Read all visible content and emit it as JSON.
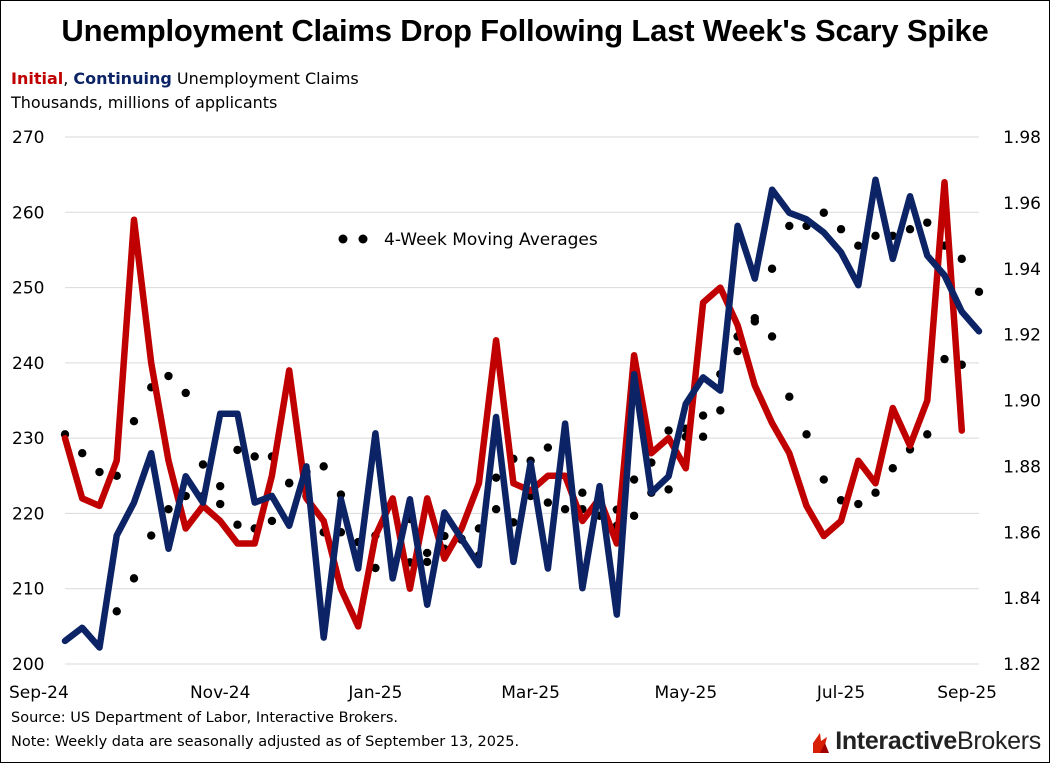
{
  "title": "Unemployment  Claims Drop Following Last Week's Scary Spike",
  "subtitle": {
    "initial": "Initial",
    "separator": ", ",
    "continuing": "Continuing",
    "rest": " Unemployment  Claims"
  },
  "units_label": "Thousands, millions of applicants",
  "source": "Source: US Department of Labor, Interactive Brokers.",
  "note": "Note: Weekly data are seasonally adjusted as of September 13, 2025.",
  "logo": {
    "text_primary": "Interactive",
    "text_secondary": "Brokers"
  },
  "colors": {
    "initial": "#c00000",
    "continuing": "#0c2466",
    "moving_average": "#000000",
    "grid": "#d9d9d9"
  },
  "chart_data": {
    "type": "line",
    "x_tick_labels": [
      "Sep-24",
      "Nov-24",
      "Jan-25",
      "Mar-25",
      "May-25",
      "Jul-25",
      "Sep-25"
    ],
    "x_tick_weeks": [
      0,
      9,
      18,
      27,
      36,
      45,
      54
    ],
    "left_axis": {
      "ylim": [
        200,
        270
      ],
      "ticks": [
        "200",
        "210",
        "220",
        "230",
        "240",
        "250",
        "260",
        "270"
      ]
    },
    "right_axis": {
      "ylim": [
        1.82,
        1.98
      ],
      "ticks": [
        "1.82",
        "1.84",
        "1.86",
        "1.88",
        "1.90",
        "1.92",
        "1.94",
        "1.96",
        "1.98"
      ]
    },
    "grid": "horizontal",
    "legend": {
      "label": "4-Week Moving Averages",
      "placement": "top-left"
    },
    "series": [
      {
        "name": "Initial",
        "axis": "left",
        "values": [
          230,
          222,
          221,
          227,
          259,
          240,
          227,
          218,
          221,
          219,
          216,
          216,
          225,
          239,
          222,
          219,
          210,
          205,
          217,
          222,
          210,
          222,
          214,
          218,
          224,
          243,
          224,
          223,
          225,
          225,
          219,
          222,
          216,
          241,
          228,
          230,
          226,
          248,
          250,
          245,
          237,
          232,
          228,
          221,
          217,
          219,
          227,
          224,
          234,
          229,
          235,
          264,
          231
        ]
      },
      {
        "name": "Continuing",
        "axis": "right",
        "values": [
          1.827,
          1.831,
          1.825,
          1.859,
          1.869,
          1.884,
          1.855,
          1.877,
          1.869,
          1.896,
          1.896,
          1.869,
          1.871,
          1.862,
          1.88,
          1.828,
          1.87,
          1.849,
          1.89,
          1.846,
          1.87,
          1.838,
          1.866,
          1.858,
          1.85,
          1.895,
          1.851,
          1.881,
          1.849,
          1.893,
          1.843,
          1.874,
          1.835,
          1.908,
          1.872,
          1.877,
          1.899,
          1.907,
          1.903,
          1.953,
          1.937,
          1.964,
          1.957,
          1.955,
          1.951,
          1.945,
          1.935,
          1.967,
          1.943,
          1.962,
          1.944,
          1.938,
          1.927,
          1.921
        ]
      },
      {
        "name": "Initial 4-Week Moving Average",
        "axis": "left",
        "style": "dotted",
        "values": [
          230.5,
          228,
          225.5,
          225,
          232.25,
          236.75,
          238.25,
          236,
          226.5,
          221.25,
          218.5,
          218,
          219,
          224,
          225.5,
          226.25,
          222.5,
          214,
          212.75,
          213.5,
          213.5,
          214.75,
          217,
          216.5,
          218,
          224.75,
          227.25,
          227,
          228.75,
          229.25,
          222.75,
          222.75,
          220.5,
          224.5,
          226.75,
          231,
          231.25,
          233,
          238.5,
          243.5,
          245.5,
          243.5,
          235.5,
          230.5,
          224.5,
          221.75,
          221.25,
          222.75,
          226,
          228.5,
          230.5,
          240.5,
          239.75
        ]
      },
      {
        "name": "Continuing 4-Week Moving Average",
        "axis": "right",
        "style": "dotted",
        "values": [
          null,
          null,
          null,
          1.836,
          1.846,
          1.859,
          1.867,
          1.871,
          1.871,
          1.874,
          1.885,
          1.883,
          1.883,
          1.875,
          1.871,
          1.86,
          1.86,
          1.857,
          1.859,
          1.851,
          1.864,
          1.851,
          1.855,
          1.858,
          1.853,
          1.867,
          1.863,
          1.871,
          1.869,
          1.867,
          1.867,
          1.865,
          1.862,
          1.865,
          1.872,
          1.873,
          1.889,
          1.889,
          1.897,
          1.915,
          1.925,
          1.94,
          1.953,
          1.953,
          1.957,
          1.952,
          1.947,
          1.95,
          1.95,
          1.952,
          1.954,
          1.947,
          1.943,
          1.933
        ]
      }
    ]
  }
}
